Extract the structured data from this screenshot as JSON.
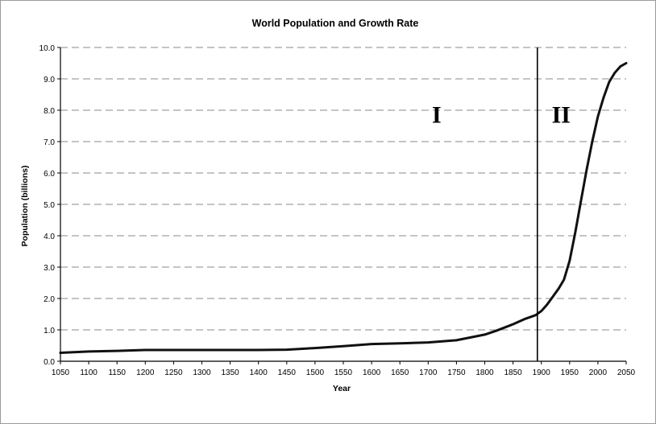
{
  "chart_data": {
    "type": "line",
    "title": "World Population and Growth Rate",
    "xlabel": "Year",
    "ylabel": "Population (billions)",
    "xlim": [
      1050,
      2050
    ],
    "ylim": [
      0,
      10
    ],
    "x_ticks": [
      1050,
      1100,
      1150,
      1200,
      1250,
      1300,
      1350,
      1400,
      1450,
      1500,
      1550,
      1600,
      1650,
      1700,
      1750,
      1800,
      1850,
      1900,
      1950,
      2000,
      2050
    ],
    "y_ticks": [
      "0.0",
      "1.0",
      "2.0",
      "3.0",
      "4.0",
      "5.0",
      "6.0",
      "7.0",
      "8.0",
      "9.0",
      "10.0"
    ],
    "grid": "horizontal dashed",
    "series": [
      {
        "x": [
          1050,
          1100,
          1150,
          1200,
          1250,
          1300,
          1350,
          1400,
          1450,
          1500,
          1550,
          1600,
          1650,
          1700,
          1750,
          1800,
          1820,
          1850,
          1870,
          1890,
          1900,
          1910,
          1920,
          1930,
          1940,
          1950,
          1960,
          1970,
          1980,
          1990,
          2000,
          2010,
          2020,
          2030,
          2040,
          2050
        ],
        "y": [
          0.27,
          0.31,
          0.33,
          0.36,
          0.36,
          0.36,
          0.36,
          0.36,
          0.37,
          0.42,
          0.48,
          0.55,
          0.57,
          0.6,
          0.67,
          0.85,
          0.97,
          1.18,
          1.34,
          1.47,
          1.6,
          1.8,
          2.05,
          2.3,
          2.6,
          3.2,
          4.1,
          5.1,
          6.1,
          7.0,
          7.8,
          8.4,
          8.9,
          9.2,
          9.4,
          9.5
        ]
      }
    ],
    "divider": {
      "x": 1893
    },
    "annotations": [
      {
        "text": "I",
        "x": 1715,
        "y": 7.6
      },
      {
        "text": "II",
        "x": 1935,
        "y": 7.6
      }
    ]
  }
}
